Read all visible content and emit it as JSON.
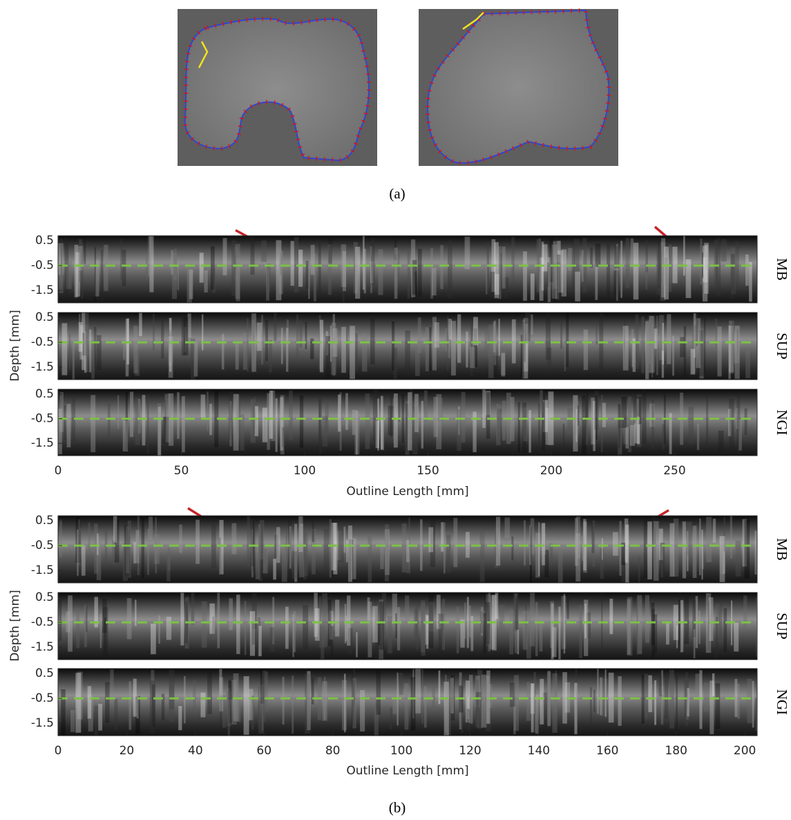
{
  "panel_a": {
    "label": "(a)"
  },
  "panel_b": {
    "label": "(b)",
    "plots": [
      {
        "rows": [
          "MB",
          "SUP",
          "NGI"
        ],
        "ylabel": "Depth [mm]",
        "xlabel": "Outline Length [mm]",
        "ylim": [
          -2,
          0.7
        ],
        "yticks": [
          0.5,
          -0.5,
          -1.5
        ],
        "reference_line": -0.5,
        "xlim": [
          0,
          283.5
        ],
        "xticks": [
          0,
          50,
          100,
          150,
          200,
          250
        ]
      },
      {
        "rows": [
          "MB",
          "SUP",
          "NGI"
        ],
        "ylabel": "Depth [mm]",
        "xlabel": "Outline Length [mm]",
        "ylim": [
          -2,
          0.7
        ],
        "yticks": [
          0.5,
          -0.5,
          -1.5
        ],
        "reference_line": -0.5,
        "xlim": [
          0,
          203.6
        ],
        "xticks": [
          0,
          20,
          40,
          60,
          80,
          100,
          120,
          140,
          160,
          180,
          200
        ]
      }
    ]
  }
}
